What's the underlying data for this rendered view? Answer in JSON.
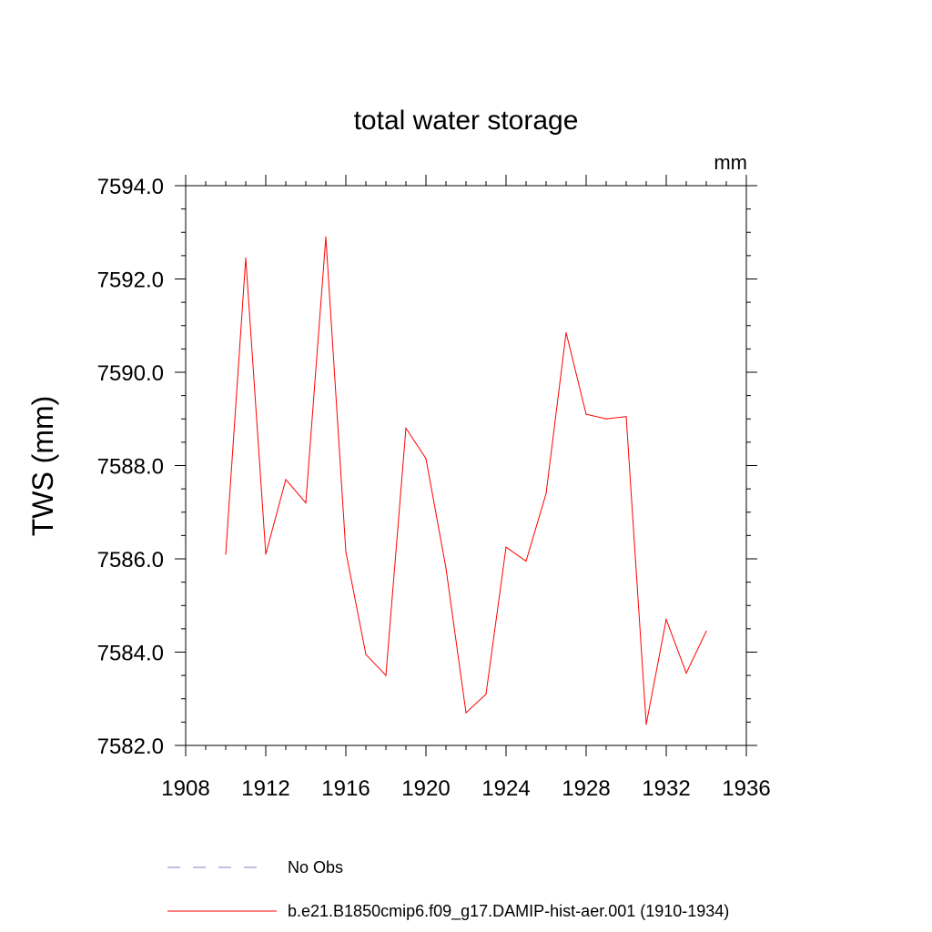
{
  "chart_data": {
    "type": "line",
    "title": "total water storage",
    "units_label": "mm",
    "xlabel": "",
    "ylabel": "TWS  (mm)",
    "xlim": [
      1908,
      1936
    ],
    "ylim": [
      7582.0,
      7594.0
    ],
    "x_ticks": [
      1908,
      1912,
      1916,
      1920,
      1924,
      1928,
      1932,
      1936
    ],
    "x_tick_labels": [
      "1908",
      "1912",
      "1916",
      "1920",
      "1924",
      "1928",
      "1932",
      "1936"
    ],
    "y_ticks": [
      7582.0,
      7584.0,
      7586.0,
      7588.0,
      7590.0,
      7592.0,
      7594.0
    ],
    "y_tick_labels": [
      "7582.0",
      "7584.0",
      "7586.0",
      "7588.0",
      "7590.0",
      "7592.0",
      "7594.0"
    ],
    "grid": false,
    "legend_position": "bottom",
    "series": [
      {
        "name": "No Obs",
        "color": "#7f7fbf",
        "line_style": "dashed",
        "x": [],
        "values": []
      },
      {
        "name": "b.e21.B1850cmip6.f09_g17.DAMIP-hist-aer.001 (1910-1934)",
        "color": "#ff0000",
        "line_style": "solid",
        "x": [
          1910,
          1911,
          1912,
          1913,
          1914,
          1915,
          1916,
          1917,
          1918,
          1919,
          1920,
          1921,
          1922,
          1923,
          1924,
          1925,
          1926,
          1927,
          1928,
          1929,
          1930,
          1931,
          1932,
          1933,
          1934
        ],
        "values": [
          7586.1,
          7592.45,
          7586.1,
          7587.7,
          7587.2,
          7592.9,
          7586.15,
          7583.95,
          7583.5,
          7588.8,
          7588.15,
          7585.8,
          7582.7,
          7583.1,
          7586.25,
          7585.95,
          7587.4,
          7590.85,
          7589.1,
          7589.0,
          7589.05,
          7582.45,
          7584.7,
          7583.55,
          7584.45
        ]
      }
    ]
  }
}
